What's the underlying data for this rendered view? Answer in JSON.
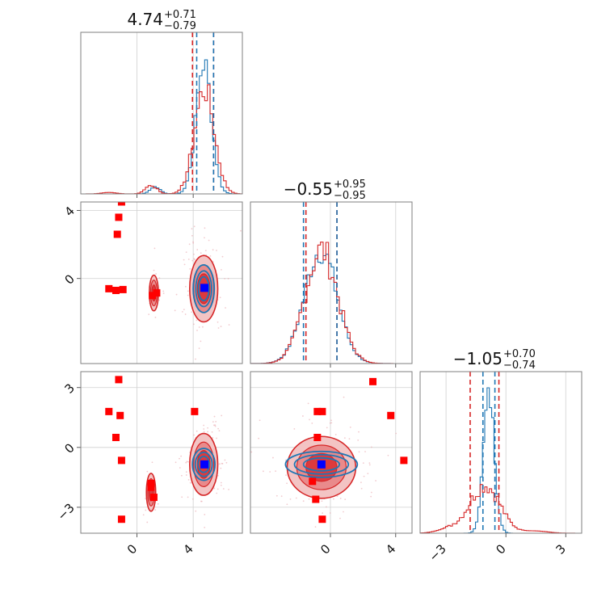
{
  "chart_data": {
    "type": "scatter",
    "subtype": "corner",
    "parameters": 3,
    "colors": {
      "red": "#d62728",
      "blue": "#1f77b4",
      "marker": "#ff0000",
      "truth": "#0000ff"
    },
    "titles": [
      {
        "value": "4.74",
        "plus": "+0.71",
        "minus": "−0.79"
      },
      {
        "value": "−0.55",
        "plus": "+0.95",
        "minus": "−0.95"
      },
      {
        "value": "−1.05",
        "plus": "+0.70",
        "minus": "−0.74"
      }
    ],
    "axes": [
      {
        "range": [
          -4.0,
          7.5
        ],
        "ticks": [
          0,
          4
        ],
        "tick_labels": [
          "0",
          "4"
        ]
      },
      {
        "range": [
          -5.0,
          4.5
        ],
        "ticks": [
          4,
          0
        ],
        "tick_labels": [
          "4",
          "0"
        ]
      },
      {
        "range": [
          -4.9,
          5.0
        ],
        "ticks": [
          0,
          4
        ],
        "tick_labels": [
          "0",
          "4"
        ]
      },
      {
        "range": [
          -4.3,
          3.8
        ],
        "ticks": [
          3,
          0,
          -3
        ],
        "tick_labels": [
          "3",
          "0",
          "−3"
        ]
      },
      {
        "range": [
          -4.3,
          3.8
        ],
        "ticks": [
          -3,
          0,
          3
        ],
        "tick_labels": [
          "−3",
          "0",
          "3"
        ]
      }
    ],
    "quantile_lines": {
      "p1": {
        "red": [
          3.95,
          5.45
        ],
        "blue": [
          4.25,
          5.45
        ]
      },
      "p2": {
        "red": [
          -1.5,
          0.4
        ],
        "blue": [
          -1.65,
          0.4
        ]
      },
      "p3": {
        "red": [
          -1.79,
          -0.35
        ],
        "blue": [
          -1.15,
          -0.55
        ]
      }
    },
    "truth_point": [
      4.8,
      -0.55,
      -0.85
    ],
    "markers_p1_p2": [
      [
        -1.1,
        4.5
      ],
      [
        -1.3,
        3.6
      ],
      [
        -1.4,
        2.6
      ],
      [
        -2.0,
        -0.6
      ],
      [
        -1.5,
        -0.7
      ],
      [
        -1.0,
        -0.65
      ],
      [
        1.4,
        -0.85
      ],
      [
        1.1,
        -1.0
      ]
    ],
    "markers_p1_p3": [
      [
        4.1,
        1.8
      ],
      [
        -1.3,
        3.4
      ],
      [
        -2.0,
        1.8
      ],
      [
        -1.2,
        1.6
      ],
      [
        -1.5,
        0.5
      ],
      [
        -1.1,
        -0.65
      ],
      [
        1.0,
        -1.8
      ],
      [
        1.2,
        -2.5
      ],
      [
        1.0,
        -2.0
      ],
      [
        -1.1,
        -3.6
      ]
    ],
    "markers_p2_p3": [
      [
        2.6,
        3.3
      ],
      [
        -0.5,
        1.8
      ],
      [
        -0.8,
        1.8
      ],
      [
        -0.8,
        0.5
      ],
      [
        3.7,
        1.6
      ],
      [
        4.5,
        -0.65
      ],
      [
        -1.1,
        -1.7
      ],
      [
        -0.9,
        -2.6
      ],
      [
        -0.5,
        -3.6
      ]
    ]
  }
}
